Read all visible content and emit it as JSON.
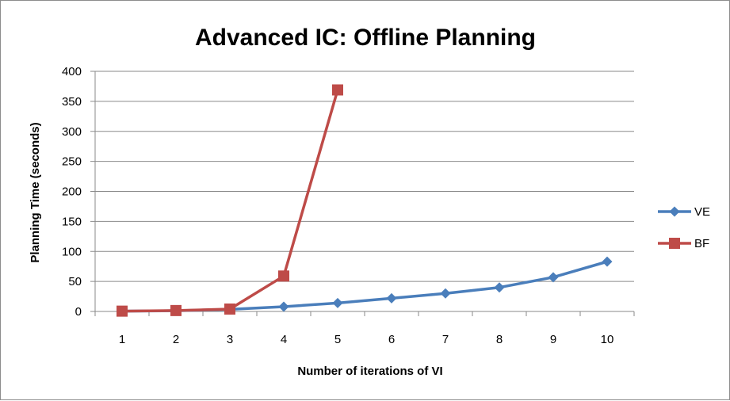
{
  "chart_data": {
    "type": "line",
    "title": "Advanced IC: Offline Planning",
    "xlabel": "Number of iterations of VI",
    "ylabel": "Planning Time (seconds)",
    "categories": [
      "1",
      "2",
      "3",
      "4",
      "5",
      "6",
      "7",
      "8",
      "9",
      "10"
    ],
    "ylim": [
      0,
      400
    ],
    "yticks": [
      "0",
      "50",
      "100",
      "150",
      "200",
      "250",
      "300",
      "350",
      "400"
    ],
    "grid": true,
    "legend_position": "right",
    "series": [
      {
        "name": "VE",
        "color": "#4a7ebb",
        "marker": "diamond",
        "values": [
          0.5,
          1.2,
          3.5,
          8,
          14,
          22,
          30,
          40,
          57,
          83
        ]
      },
      {
        "name": "BF",
        "color": "#be4b48",
        "marker": "square",
        "values": [
          0.5,
          1.5,
          4,
          59,
          369,
          null,
          null,
          null,
          null,
          null
        ]
      }
    ]
  }
}
